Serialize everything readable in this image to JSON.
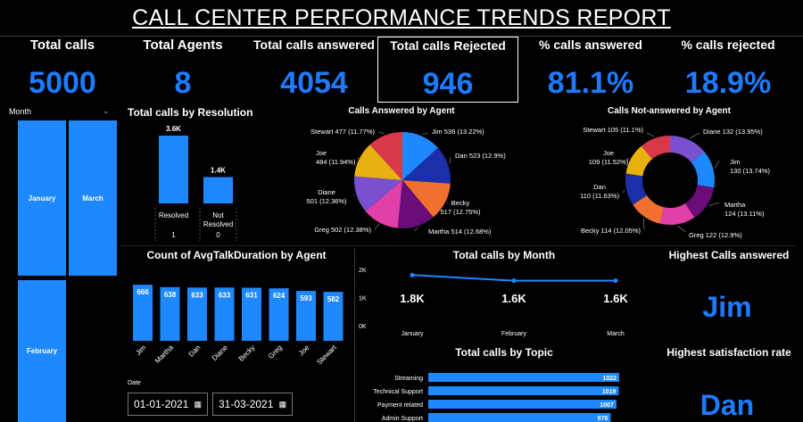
{
  "title": "CALL CENTER PERFORMANCE TRENDS REPORT",
  "kpis": [
    {
      "label": "Total calls",
      "value": "5000"
    },
    {
      "label": "Total Agents",
      "value": "8"
    },
    {
      "label": "Total calls answered",
      "value": "4054"
    },
    {
      "label": "Total calls Rejected",
      "value": "946"
    },
    {
      "label": "% calls answered",
      "value": "81.1%"
    },
    {
      "label": "% calls rejected",
      "value": "18.9%"
    }
  ],
  "month_slicer": {
    "header": "Month",
    "items": [
      "January",
      "March",
      "February"
    ]
  },
  "resolution": {
    "title": "Total calls by Resolution",
    "chart_data": {
      "type": "bar",
      "categories": [
        "Resolved",
        "Not Resolved"
      ],
      "values": [
        3600,
        1400
      ],
      "value_labels": [
        "3.6K",
        "1.4K"
      ],
      "row_values": [
        "1",
        "0"
      ]
    }
  },
  "answered_by_agent": {
    "title": "Calls Answered by Agent",
    "chart_data": {
      "type": "pie",
      "slices": [
        {
          "name": "Jim",
          "value": 536,
          "label": "Jim 536 (13.22%)",
          "color": "#1e88ff"
        },
        {
          "name": "Dan",
          "value": 523,
          "label": "Dan 523 (12.9%)",
          "color": "#1a2fa8"
        },
        {
          "name": "Becky",
          "value": 517,
          "label": "Becky\n517 (12.75%)",
          "color": "#f07030"
        },
        {
          "name": "Martha",
          "value": 514,
          "label": "Martha 514 (12.68%)",
          "color": "#6a0d7a"
        },
        {
          "name": "Greg",
          "value": 502,
          "label": "Greg 502 (12.38%)",
          "color": "#e040a8"
        },
        {
          "name": "Diane",
          "value": 501,
          "label": "Diane\n501 (12.36%)",
          "color": "#7a50d0"
        },
        {
          "name": "Joe",
          "value": 484,
          "label": "Joe\n484 (11.94%)",
          "color": "#e8b010"
        },
        {
          "name": "Stewart",
          "value": 477,
          "label": "Stewart 477 (11.77%)",
          "color": "#d83848"
        }
      ]
    }
  },
  "not_answered_by_agent": {
    "title": "Calls Not-answered by Agent",
    "chart_data": {
      "type": "pie",
      "donut": true,
      "slices": [
        {
          "name": "Diane",
          "value": 132,
          "label": "Diane 132 (13.95%)",
          "color": "#7a50d0"
        },
        {
          "name": "Jim",
          "value": 130,
          "label": "Jim\n130 (13.74%)",
          "color": "#1e88ff"
        },
        {
          "name": "Martha",
          "value": 124,
          "label": "Martha\n124 (13.11%)",
          "color": "#6a0d7a"
        },
        {
          "name": "Greg",
          "value": 122,
          "label": "Greg 122 (12.9%)",
          "color": "#e040a8"
        },
        {
          "name": "Becky",
          "value": 114,
          "label": "Becky 114 (12.05%)",
          "color": "#f07030"
        },
        {
          "name": "Dan",
          "value": 110,
          "label": "Dan\n110 (11.63%)",
          "color": "#1a2fa8"
        },
        {
          "name": "Joe",
          "value": 109,
          "label": "Joe\n109 (11.52%)",
          "color": "#e8b010"
        },
        {
          "name": "Stewart",
          "value": 105,
          "label": "Stewart 105 (11.1%)",
          "color": "#d83848"
        }
      ]
    }
  },
  "talk_duration": {
    "title": "Count of AvgTalkDuration by Agent",
    "chart_data": {
      "type": "bar",
      "categories": [
        "Jim",
        "Martha",
        "Dan",
        "Diane",
        "Becky",
        "Greg",
        "Joe",
        "Stewart"
      ],
      "values": [
        666,
        638,
        633,
        633,
        631,
        624,
        593,
        582
      ]
    }
  },
  "calls_by_month": {
    "title": "Total calls by Month",
    "chart_data": {
      "type": "line",
      "categories": [
        "January",
        "February",
        "March"
      ],
      "values": [
        1800,
        1600,
        1600
      ],
      "value_labels": [
        "1.8K",
        "1.6K",
        "1.6K"
      ],
      "y_ticks": [
        "2K",
        "1K",
        "0K"
      ],
      "ylim": [
        0,
        2000
      ]
    }
  },
  "calls_by_topic": {
    "title": "Total calls by Topic",
    "chart_data": {
      "type": "bar",
      "categories": [
        "Streaming",
        "Technical Support",
        "Payment related",
        "Admin Support"
      ],
      "values": [
        1022,
        1019,
        1007,
        976
      ]
    }
  },
  "highest_answered": {
    "title": "Highest Calls answered",
    "value": "Jim"
  },
  "highest_satisfaction": {
    "title": "Highest satisfaction rate",
    "value": "Dan"
  },
  "date_filter": {
    "label": "Date",
    "start": "01-01-2021",
    "end": "31-03-2021"
  },
  "colors": {
    "accent": "#1e88ff",
    "value_text": "#1e7bff",
    "background": "#000000"
  }
}
